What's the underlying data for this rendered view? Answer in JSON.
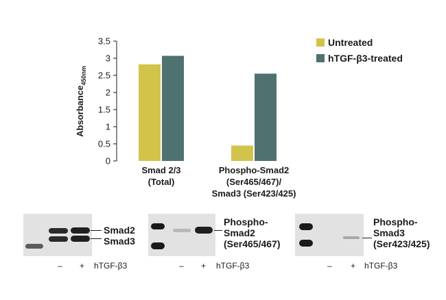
{
  "chart_data": {
    "type": "bar",
    "categories": [
      [
        "Smad 2/3",
        "(Total)"
      ],
      [
        "Phospho-Smad2",
        "(Ser465/467)/",
        "Smad3 (Ser423/425)"
      ]
    ],
    "series": [
      {
        "name": "Untreated",
        "values": [
          2.82,
          0.45
        ]
      },
      {
        "name": "hTGF-β3-treated",
        "values": [
          3.07,
          2.55
        ]
      }
    ],
    "ylabel": "Absorbance",
    "ylabel_subscript": "450nm",
    "ylim": [
      0,
      3.5
    ],
    "yticks": [
      "0",
      "0.5",
      "1",
      "1.5",
      "2",
      "2.5",
      "3",
      "3.5"
    ],
    "colors": [
      "#d2c44a",
      "#4f7170"
    ],
    "legend_position": "top-right",
    "grid": false
  },
  "blots": [
    {
      "labels": [
        "Smad2",
        "Smad3"
      ],
      "lane_marks": [
        "–",
        "+"
      ],
      "treatment": "hTGF-β3"
    },
    {
      "labels": [
        "Phospho-",
        "Smad2",
        "(Ser465/467)"
      ],
      "lane_marks": [
        "–",
        "+"
      ],
      "treatment": "hTGF-β3"
    },
    {
      "labels": [
        "Phospho-",
        "Smad3",
        "(Ser423/425)"
      ],
      "lane_marks": [
        "–",
        "+"
      ],
      "treatment": "hTGF-β3"
    }
  ]
}
